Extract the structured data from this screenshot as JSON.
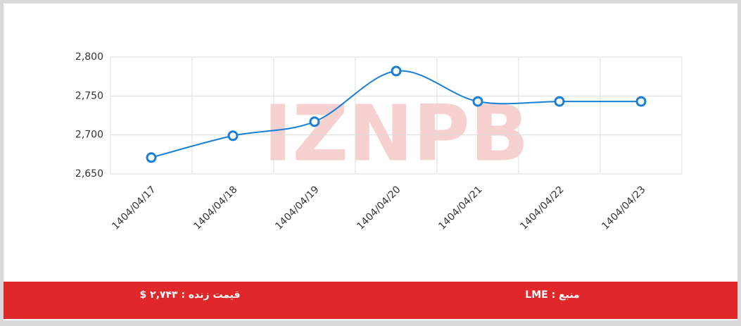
{
  "chart_data": {
    "type": "line",
    "categories": [
      "1404/04/17",
      "1404/04/18",
      "1404/04/19",
      "1404/04/20",
      "1404/04/21",
      "1404/04/22",
      "1404/04/23"
    ],
    "values": [
      2671,
      2699,
      2717,
      2782,
      2743,
      2743,
      2743
    ],
    "color": "#1a7fd4",
    "ylim": [
      2650,
      2800
    ],
    "yticks": [
      {
        "value": 2650,
        "label": "2,650"
      },
      {
        "value": 2700,
        "label": "2,700"
      },
      {
        "value": 2750,
        "label": "2,750"
      },
      {
        "value": 2800,
        "label": "2,800"
      }
    ],
    "grid": true
  },
  "watermark": "IZNPB",
  "footer": {
    "live_price": "قیمت زنده : ۲,۷۴۳ $",
    "source": "منبع : LME"
  }
}
